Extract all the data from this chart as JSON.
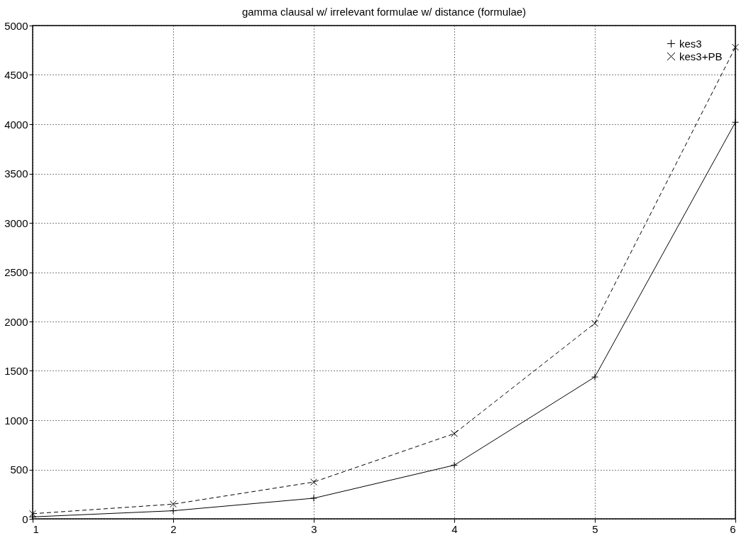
{
  "chart_data": {
    "type": "line",
    "title": "gamma clausal w/ irrelevant formulae w/ distance (formulae)",
    "x": [
      1,
      2,
      3,
      4,
      5,
      6
    ],
    "series": [
      {
        "name": "kes3",
        "color": "#000000",
        "marker": "plus",
        "line_style": "solid",
        "values": [
          20,
          82,
          209,
          544,
          1438,
          4020
        ]
      },
      {
        "name": "kes3+PB",
        "color": "#000000",
        "marker": "cross",
        "line_style": "dashed",
        "values": [
          52,
          149,
          373,
          864,
          1982,
          4780
        ]
      }
    ],
    "xlim": [
      1,
      6
    ],
    "xticks": [
      1,
      2,
      3,
      4,
      5,
      6
    ],
    "ylim": [
      0,
      5000
    ],
    "yticks": [
      0,
      500,
      1000,
      1500,
      2000,
      2500,
      3000,
      3500,
      4000,
      4500,
      5000
    ],
    "grid": true,
    "legend": "top right"
  }
}
